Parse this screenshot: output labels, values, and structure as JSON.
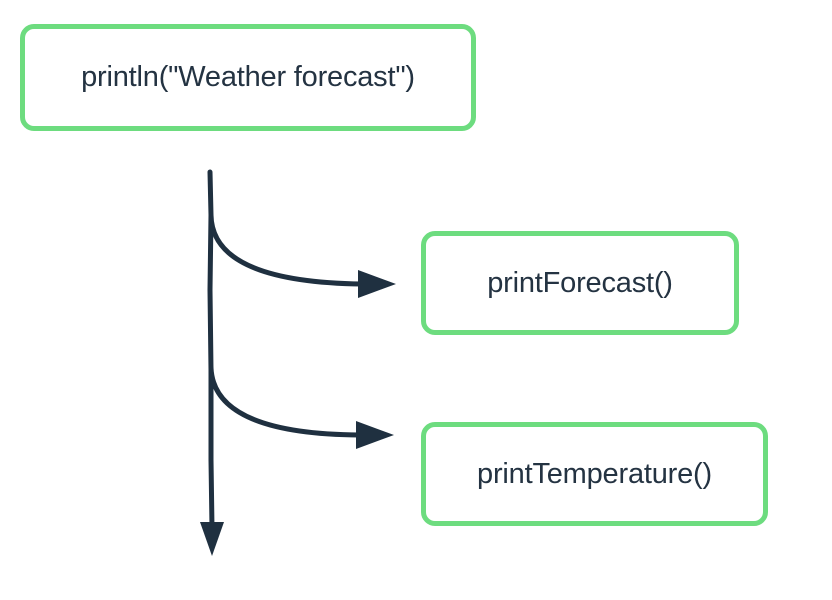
{
  "diagram": {
    "main_call": "println(\"Weather forecast\")",
    "calls": [
      "printForecast()",
      "printTemperature()"
    ],
    "colors": {
      "box_border": "#6ddc7f",
      "arrow": "#1f3040",
      "text": "#243342"
    }
  }
}
